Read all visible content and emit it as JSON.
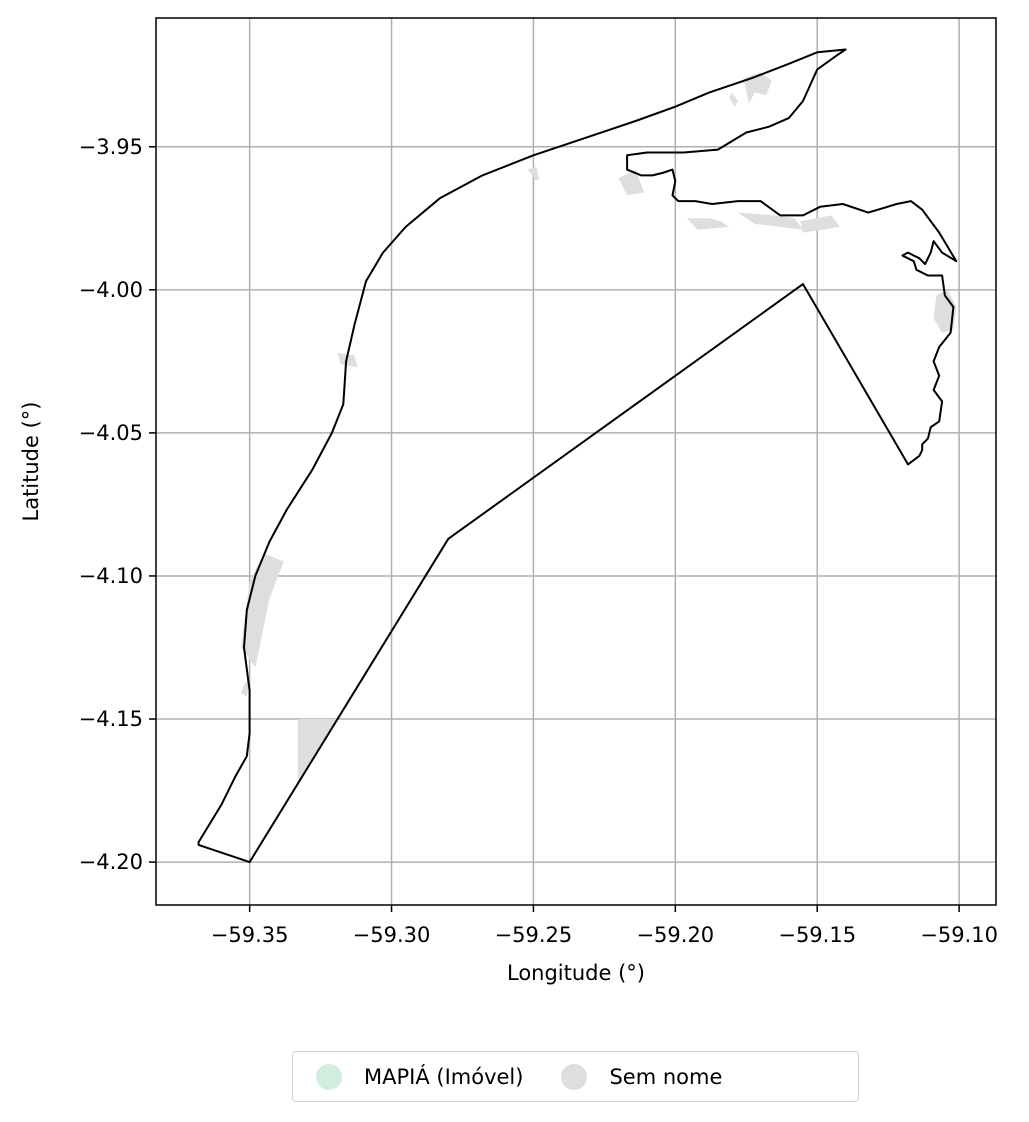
{
  "axes": {
    "xlabel": "Longitude (°)",
    "ylabel": "Latitude (°)",
    "xlim": [
      -59.383,
      -59.087
    ],
    "ylim": [
      -4.215,
      -3.905
    ],
    "xticks": [
      -59.35,
      -59.3,
      -59.25,
      -59.2,
      -59.15,
      -59.1
    ],
    "yticks": [
      -3.95,
      -4.0,
      -4.05,
      -4.1,
      -4.15,
      -4.2
    ],
    "xtick_labels": [
      "−59.35",
      "−59.30",
      "−59.25",
      "−59.20",
      "−59.15",
      "−59.10"
    ],
    "ytick_labels": [
      "−3.95",
      "−4.00",
      "−4.05",
      "−4.10",
      "−4.15",
      "−4.20"
    ],
    "grid": true
  },
  "legend": {
    "placement": "bottom-center",
    "items": [
      {
        "label": "MAPIÁ (Imóvel)",
        "color": "#d2ece0"
      },
      {
        "label": "Sem nome",
        "color": "#dedede"
      }
    ]
  },
  "colors": {
    "boundary": "#000000",
    "patches": "#dedede",
    "grid": "#b0b0b0"
  },
  "map_data": {
    "boundary": [
      [
        -59.368,
        -4.193
      ],
      [
        -59.36,
        -4.18
      ],
      [
        -59.355,
        -4.17
      ],
      [
        -59.351,
        -4.163
      ],
      [
        -59.35,
        -4.155
      ],
      [
        -59.35,
        -4.14
      ],
      [
        -59.352,
        -4.125
      ],
      [
        -59.351,
        -4.112
      ],
      [
        -59.348,
        -4.1
      ],
      [
        -59.343,
        -4.088
      ],
      [
        -59.337,
        -4.077
      ],
      [
        -59.328,
        -4.063
      ],
      [
        -59.321,
        -4.05
      ],
      [
        -59.317,
        -4.04
      ],
      [
        -59.316,
        -4.025
      ],
      [
        -59.313,
        -4.012
      ],
      [
        -59.309,
        -3.997
      ],
      [
        -59.303,
        -3.987
      ],
      [
        -59.295,
        -3.978
      ],
      [
        -59.283,
        -3.968
      ],
      [
        -59.268,
        -3.96
      ],
      [
        -59.25,
        -3.953
      ],
      [
        -59.232,
        -3.947
      ],
      [
        -59.214,
        -3.941
      ],
      [
        -59.2,
        -3.936
      ],
      [
        -59.188,
        -3.931
      ],
      [
        -59.173,
        -3.926
      ],
      [
        -59.16,
        -3.921
      ],
      [
        -59.15,
        -3.917
      ],
      [
        -59.14,
        -3.916
      ],
      [
        -59.143,
        -3.918
      ],
      [
        -59.15,
        -3.923
      ],
      [
        -59.155,
        -3.934
      ],
      [
        -59.16,
        -3.94
      ],
      [
        -59.167,
        -3.943
      ],
      [
        -59.175,
        -3.945
      ],
      [
        -59.185,
        -3.951
      ],
      [
        -59.197,
        -3.952
      ],
      [
        -59.21,
        -3.952
      ],
      [
        -59.217,
        -3.953
      ],
      [
        -59.217,
        -3.958
      ],
      [
        -59.212,
        -3.96
      ],
      [
        -59.208,
        -3.96
      ],
      [
        -59.204,
        -3.959
      ],
      [
        -59.201,
        -3.958
      ],
      [
        -59.2,
        -3.962
      ],
      [
        -59.201,
        -3.967
      ],
      [
        -59.199,
        -3.969
      ],
      [
        -59.193,
        -3.969
      ],
      [
        -59.187,
        -3.97
      ],
      [
        -59.178,
        -3.969
      ],
      [
        -59.17,
        -3.969
      ],
      [
        -59.163,
        -3.974
      ],
      [
        -59.155,
        -3.974
      ],
      [
        -59.149,
        -3.971
      ],
      [
        -59.141,
        -3.97
      ],
      [
        -59.132,
        -3.973
      ],
      [
        -59.122,
        -3.97
      ],
      [
        -59.117,
        -3.969
      ],
      [
        -59.113,
        -3.972
      ],
      [
        -59.107,
        -3.98
      ],
      [
        -59.101,
        -3.99
      ],
      [
        -59.106,
        -3.987
      ],
      [
        -59.109,
        -3.983
      ],
      [
        -59.11,
        -3.987
      ],
      [
        -59.112,
        -3.991
      ],
      [
        -59.114,
        -3.989
      ],
      [
        -59.116,
        -3.988
      ],
      [
        -59.118,
        -3.987
      ],
      [
        -59.12,
        -3.988
      ],
      [
        -59.116,
        -3.99
      ],
      [
        -59.115,
        -3.993
      ],
      [
        -59.111,
        -3.995
      ],
      [
        -59.106,
        -3.995
      ],
      [
        -59.105,
        -4.002
      ],
      [
        -59.102,
        -4.006
      ],
      [
        -59.103,
        -4.015
      ],
      [
        -59.107,
        -4.02
      ],
      [
        -59.109,
        -4.025
      ],
      [
        -59.107,
        -4.03
      ],
      [
        -59.109,
        -4.035
      ],
      [
        -59.106,
        -4.039
      ],
      [
        -59.107,
        -4.046
      ],
      [
        -59.11,
        -4.048
      ],
      [
        -59.111,
        -4.052
      ],
      [
        -59.113,
        -4.054
      ],
      [
        -59.113,
        -4.056
      ],
      [
        -59.114,
        -4.058
      ],
      [
        -59.118,
        -4.061
      ],
      [
        -59.155,
        -3.998
      ],
      [
        -59.28,
        -4.087
      ],
      [
        -59.35,
        -4.2
      ],
      [
        -59.368,
        -4.194
      ]
    ],
    "patches": [
      [
        [
          -59.353,
          -4.125
        ],
        [
          -59.35,
          -4.102
        ],
        [
          -59.345,
          -4.092
        ],
        [
          -59.338,
          -4.095
        ],
        [
          -59.343,
          -4.108
        ],
        [
          -59.348,
          -4.132
        ]
      ],
      [
        [
          -59.352,
          -4.138
        ],
        [
          -59.35,
          -4.136
        ],
        [
          -59.351,
          -4.142
        ],
        [
          -59.353,
          -4.141
        ]
      ],
      [
        [
          -59.333,
          -4.15
        ],
        [
          -59.319,
          -4.15
        ],
        [
          -59.333,
          -4.172
        ]
      ],
      [
        [
          -59.319,
          -4.022
        ],
        [
          -59.313,
          -4.023
        ],
        [
          -59.312,
          -4.027
        ],
        [
          -59.318,
          -4.026
        ]
      ],
      [
        [
          -59.252,
          -3.958
        ],
        [
          -59.249,
          -3.957
        ],
        [
          -59.248,
          -3.961
        ],
        [
          -59.249,
          -3.962
        ]
      ],
      [
        [
          -59.22,
          -3.961
        ],
        [
          -59.214,
          -3.958
        ],
        [
          -59.211,
          -3.966
        ],
        [
          -59.217,
          -3.967
        ]
      ],
      [
        [
          -59.176,
          -3.926
        ],
        [
          -59.17,
          -3.924
        ],
        [
          -59.166,
          -3.927
        ],
        [
          -59.168,
          -3.932
        ],
        [
          -59.172,
          -3.931
        ],
        [
          -59.174,
          -3.935
        ]
      ],
      [
        [
          -59.18,
          -3.931
        ],
        [
          -59.178,
          -3.934
        ],
        [
          -59.179,
          -3.936
        ],
        [
          -59.181,
          -3.933
        ]
      ],
      [
        [
          -59.196,
          -3.975
        ],
        [
          -59.188,
          -3.975
        ],
        [
          -59.184,
          -3.976
        ],
        [
          -59.181,
          -3.978
        ],
        [
          -59.192,
          -3.979
        ]
      ],
      [
        [
          -59.178,
          -3.973
        ],
        [
          -59.165,
          -3.974
        ],
        [
          -59.158,
          -3.975
        ],
        [
          -59.155,
          -3.979
        ],
        [
          -59.163,
          -3.978
        ],
        [
          -59.172,
          -3.977
        ]
      ],
      [
        [
          -59.156,
          -3.976
        ],
        [
          -59.145,
          -3.974
        ],
        [
          -59.142,
          -3.978
        ],
        [
          -59.155,
          -3.98
        ]
      ],
      [
        [
          -59.108,
          -4.002
        ],
        [
          -59.104,
          -4.0
        ],
        [
          -59.101,
          -4.006
        ],
        [
          -59.102,
          -4.014
        ],
        [
          -59.106,
          -4.015
        ],
        [
          -59.109,
          -4.01
        ]
      ]
    ]
  }
}
